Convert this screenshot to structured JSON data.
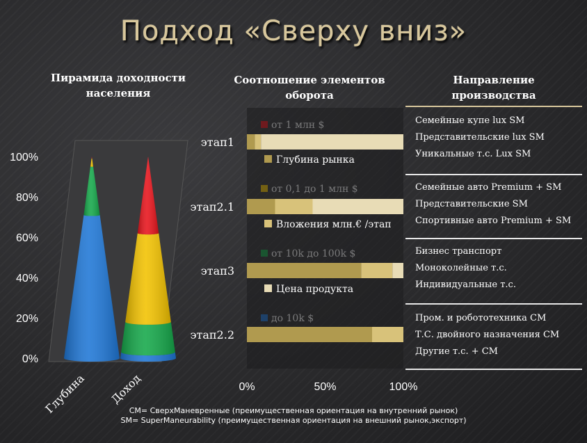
{
  "title": "Подход «Сверху вниз»",
  "headings": {
    "pyramid": [
      "Пирамида доходности",
      "населения"
    ],
    "ratio": [
      "Соотношение элементов",
      "оборота"
    ],
    "production": [
      "Направление",
      "производства"
    ]
  },
  "colors": {
    "red": "#e8141c",
    "yellow": "#f2c200",
    "green": "#15a84a",
    "blue": "#1f77d6",
    "bar_dark": "#b09a4f",
    "bar_mid": "#d8c27a",
    "bar_light": "#e8dcb6",
    "accent": "#d8c79c"
  },
  "chart_data": [
    {
      "type": "area",
      "title": "Пирамида доходности населения",
      "categories": [
        "Глубина",
        "Доход"
      ],
      "yticks": [
        "0%",
        "20%",
        "40%",
        "60%",
        "80%",
        "100%"
      ],
      "ylim": [
        0,
        100
      ],
      "series": [
        {
          "name": "до 10k $",
          "color": "blue",
          "values": [
            71,
            3
          ]
        },
        {
          "name": "от 10k до 100k $",
          "color": "green",
          "values": [
            24,
            15
          ]
        },
        {
          "name": "от 0,1 до 1 млн $",
          "color": "yellow",
          "values": [
            4,
            44
          ]
        },
        {
          "name": "от 1 млн $",
          "color": "red",
          "values": [
            1,
            38
          ]
        }
      ],
      "grid": false,
      "legend": "right"
    },
    {
      "type": "bar",
      "orientation": "horizontal",
      "stacked": "percent",
      "title": "Соотношение элементов оборота",
      "categories": [
        "этап1",
        "этап2.1",
        "этап3",
        "этап2.2"
      ],
      "xticks": [
        "0%",
        "50%",
        "100%"
      ],
      "xlim": [
        0,
        100
      ],
      "series": [
        {
          "name": "Глубина рынка",
          "color": "bar_dark",
          "values": [
            5,
            18,
            73,
            80
          ]
        },
        {
          "name": "Вложения млн.€ /этап",
          "color": "bar_mid",
          "values": [
            4,
            24,
            20,
            20
          ]
        },
        {
          "name": "Цена продукта",
          "color": "bar_light",
          "values": [
            91,
            58,
            7,
            0
          ]
        }
      ],
      "legend": "interleaved"
    }
  ],
  "legend_income": [
    "от 1 млн $",
    "от 0,1 до 1 млн $",
    "от 10k до 100k $",
    "до 10k $"
  ],
  "legend_bars": [
    "Глубина рынка",
    "Вложения млн.€ /этап",
    "Цена продукта"
  ],
  "production_groups": [
    [
      "Семейные купе lux SM",
      "Представительские  lux SM",
      "Уникальные т.с. Lux SM"
    ],
    [
      "Семейные авто Premium + SM",
      "Представительские  SM",
      "Спортивные авто Premium + SM"
    ],
    [
      "Бизнес транспорт",
      "Моноколейные т.с.",
      "Индивидуальные  т.с."
    ],
    [
      "Пром. и робототехника СМ",
      "Т.С. двойного назначения СМ",
      "Другие т.с. + СМ"
    ]
  ],
  "footnotes": [
    "СМ= СверхМаневренные (преимущественная ориентация на внутренний рынок)",
    "SM= SuperManeurability (преимущественная ориентация на внешний рынок,экспорт)"
  ]
}
